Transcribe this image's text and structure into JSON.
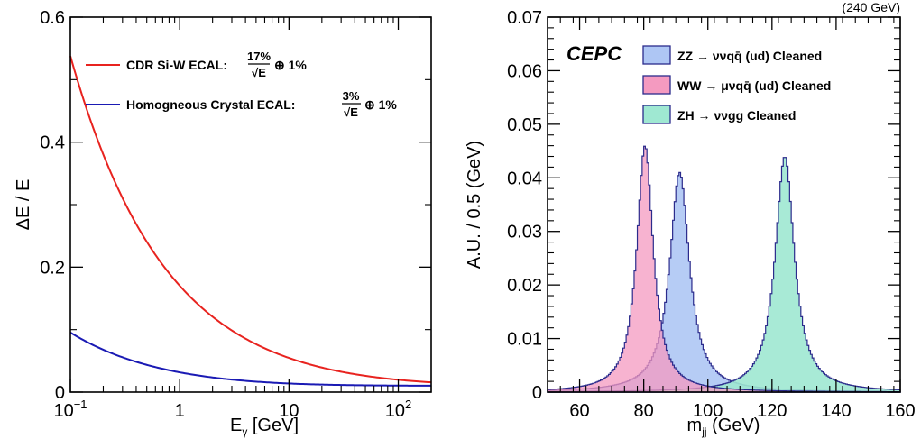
{
  "colors": {
    "red": "#e8231f",
    "blue": "#1a1ab4",
    "zz_fill": "#aec6f4",
    "ww_fill": "#f49ac0",
    "zh_fill": "#9fe8d2",
    "hist_line": "#2b2b8c"
  },
  "chart_data": [
    {
      "type": "line",
      "ylabel": "ΔE / E",
      "xlabel": "Eγ [GeV]",
      "xlabel_main": "E",
      "xlabel_sub": "γ",
      "xlabel_tail": " [GeV]",
      "xscale": "log",
      "xlim": [
        0.1,
        200
      ],
      "ylim": [
        0,
        0.6
      ],
      "yticks": [
        {
          "v": 0,
          "label": "0"
        },
        {
          "v": 0.2,
          "label": "0.2"
        },
        {
          "v": 0.4,
          "label": "0.4"
        },
        {
          "v": 0.6,
          "label": "0.6"
        }
      ],
      "xticks": [
        {
          "v": 0.1,
          "base": "10",
          "exp": "−1"
        },
        {
          "v": 1,
          "label": "1"
        },
        {
          "v": 10,
          "label": "10"
        },
        {
          "v": 100,
          "base": "10",
          "exp": "2"
        }
      ],
      "series": [
        {
          "name": "CDR Si-W ECAL:",
          "frac_num": "17%",
          "frac_den": "√E",
          "plus": "⊕ 1%",
          "stochastic": 0.17,
          "constant": 0.01,
          "color": "#e8231f"
        },
        {
          "name": "Homogneous Crystal ECAL:",
          "frac_num": "3%",
          "frac_den": "√E",
          "plus": "⊕ 1%",
          "stochastic": 0.03,
          "constant": 0.01,
          "color": "#1a1ab4"
        }
      ],
      "legend_position": "top-left",
      "grid": false
    },
    {
      "type": "area",
      "ylabel": "A.U. / 0.5 (GeV)",
      "xlabel": "mjj (GeV)",
      "xlabel_main": "m",
      "xlabel_sub": "jj",
      "xlabel_tail": " (GeV)",
      "energy_label": "(240 GeV)",
      "experiment_label": "CEPC",
      "xlim": [
        50,
        160
      ],
      "ylim": [
        0,
        0.07
      ],
      "xticks": [
        60,
        80,
        100,
        120,
        140,
        160
      ],
      "yticks": [
        {
          "v": 0,
          "label": "0"
        },
        {
          "v": 0.01,
          "label": "0.01"
        },
        {
          "v": 0.02,
          "label": "0.02"
        },
        {
          "v": 0.03,
          "label": "0.03"
        },
        {
          "v": 0.04,
          "label": "0.04"
        },
        {
          "v": 0.05,
          "label": "0.05"
        },
        {
          "v": 0.06,
          "label": "0.06"
        },
        {
          "v": 0.07,
          "label": "0.07"
        }
      ],
      "bin_width": 0.5,
      "series": [
        {
          "name": "ZZ → ννqq̄ (ud) Cleaned",
          "peak_x": 91.2,
          "peak_y": 0.041,
          "width": 3.7,
          "color": "#aec6f4"
        },
        {
          "name": "WW → μνqq̄ (ud) Cleaned",
          "peak_x": 80.4,
          "peak_y": 0.046,
          "width": 3.1,
          "color": "#f49ac0"
        },
        {
          "name": "ZH → ννgg Cleaned",
          "peak_x": 124.0,
          "peak_y": 0.044,
          "width": 3.6,
          "color": "#9fe8d2"
        }
      ],
      "legend_position": "top-right",
      "grid": false
    }
  ]
}
